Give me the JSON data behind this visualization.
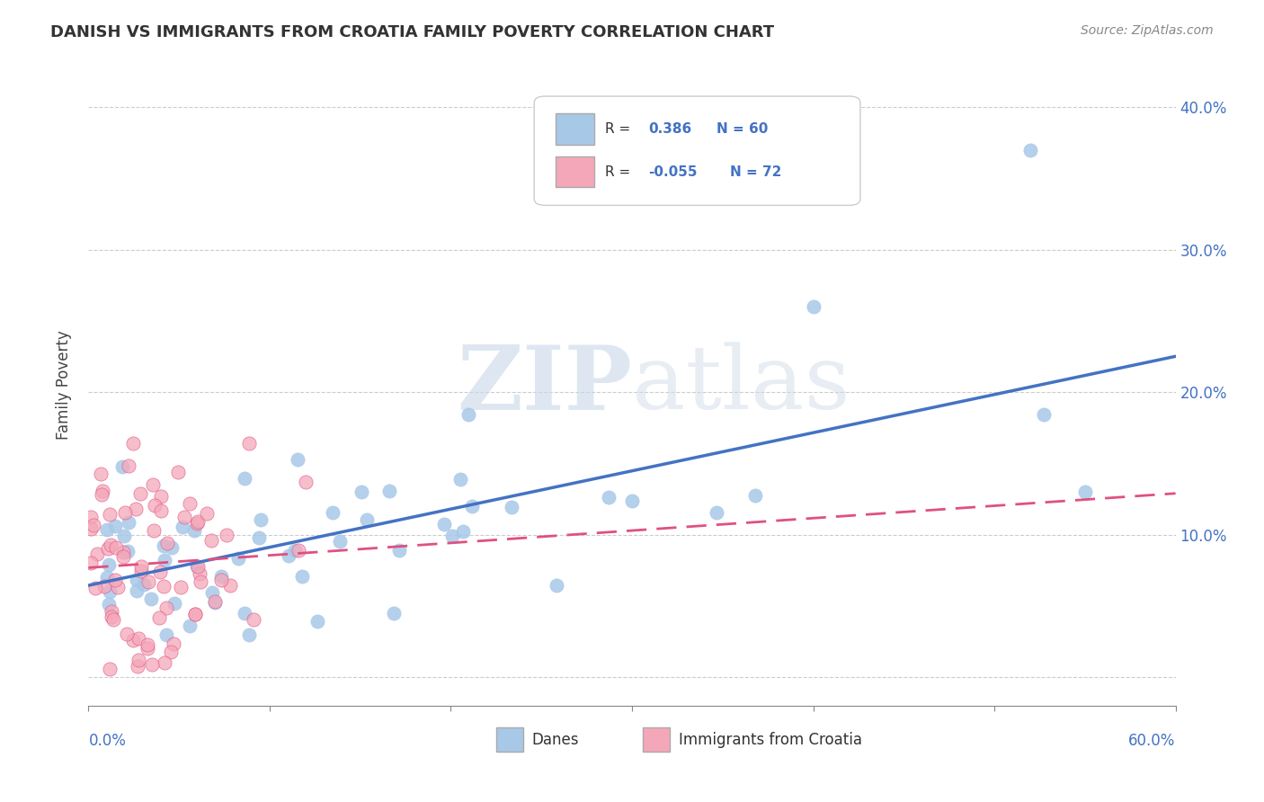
{
  "title": "DANISH VS IMMIGRANTS FROM CROATIA FAMILY POVERTY CORRELATION CHART",
  "source": "Source: ZipAtlas.com",
  "ylabel": "Family Poverty",
  "ytick_vals": [
    0.0,
    0.1,
    0.2,
    0.3,
    0.4
  ],
  "ytick_labels": [
    "",
    "10.0%",
    "20.0%",
    "30.0%",
    "40.0%"
  ],
  "xlim": [
    0.0,
    0.6
  ],
  "ylim": [
    -0.02,
    0.43
  ],
  "legend_r_danes": "0.386",
  "legend_n_danes": "60",
  "legend_r_croatia": "-0.055",
  "legend_n_croatia": "72",
  "danes_color": "#a8c8e8",
  "danes_line_color": "#4472c4",
  "croatia_color": "#f4a7b9",
  "croatia_line_color": "#e05080",
  "watermark_zip": "ZIP",
  "watermark_atlas": "atlas"
}
